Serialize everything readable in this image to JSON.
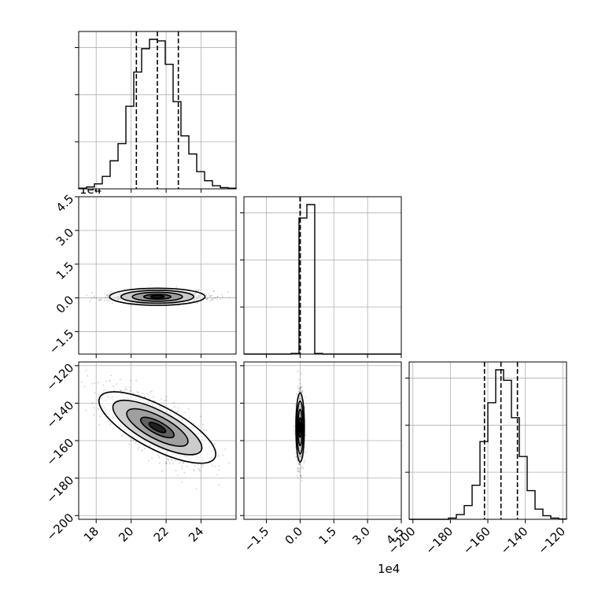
{
  "chart_data": {
    "type": "corner",
    "title": "",
    "grid": true,
    "colors": {
      "line": "#000000",
      "grid": "#b0b0b0",
      "points": "#000000",
      "fill": "#000000"
    },
    "params": [
      {
        "index": 0,
        "range": [
          17,
          26
        ],
        "ticks": [
          18,
          20,
          22,
          24
        ],
        "tick_labels": [
          "18",
          "20",
          "22",
          "24"
        ],
        "quantiles": [
          20.3,
          21.5,
          22.7
        ]
      },
      {
        "index": 1,
        "range": [
          -25000,
          45000
        ],
        "ticks": [
          -15000,
          0,
          15000,
          30000,
          45000
        ],
        "tick_labels": [
          "−1.5",
          "0.0",
          "1.5",
          "3.0",
          "4.5"
        ],
        "offset_text": "1e4",
        "quantiles": [
          0,
          0,
          0
        ]
      },
      {
        "index": 2,
        "range": [
          -202,
          -118
        ],
        "ticks": [
          -200,
          -180,
          -160,
          -140,
          -120
        ],
        "tick_labels": [
          "−200",
          "−180",
          "−160",
          "−140",
          "−120"
        ],
        "quantiles": [
          -161.8,
          -153.0,
          -144.2
        ]
      }
    ],
    "hist": [
      {
        "param": 0,
        "bin_edges": [
          17,
          17.45,
          17.9,
          18.35,
          18.8,
          19.25,
          19.7,
          20.15,
          20.6,
          21.05,
          21.5,
          21.95,
          22.4,
          22.85,
          23.3,
          23.75,
          24.2,
          24.65,
          25.1,
          25.55,
          26
        ],
        "counts": [
          2,
          6,
          16,
          40,
          90,
          145,
          265,
          375,
          450,
          480,
          475,
          400,
          280,
          170,
          112,
          55,
          26,
          10,
          4,
          2
        ]
      },
      {
        "param": 1,
        "bin_edges": [
          -25000,
          -21500,
          -18000,
          -14500,
          -11000,
          -7500,
          -4000,
          -500,
          3000,
          6500,
          10000,
          13500,
          17000,
          20500,
          24000,
          27500,
          31000,
          34500,
          38000,
          41500,
          45000
        ],
        "counts": [
          0,
          0,
          0,
          0,
          0,
          0,
          2,
          455,
          500,
          2,
          0,
          0,
          0,
          0,
          0,
          0,
          0,
          0,
          0,
          0
        ]
      },
      {
        "param": 2,
        "bin_edges": [
          -202,
          -197.8,
          -193.6,
          -189.4,
          -185.2,
          -181,
          -176.8,
          -172.6,
          -168.4,
          -164.2,
          -160,
          -155.8,
          -151.6,
          -147.4,
          -143.2,
          -139,
          -134.8,
          -130.6,
          -126.4,
          -122.2,
          -118
        ],
        "counts": [
          0,
          0,
          0,
          0,
          0,
          4,
          16,
          46,
          114,
          260,
          390,
          500,
          465,
          340,
          210,
          96,
          34,
          12,
          4,
          1
        ]
      }
    ],
    "pairs": [
      {
        "x_param": 0,
        "y_param": 1,
        "mean": [
          21.5,
          500
        ],
        "sd": [
          1.3,
          1800
        ],
        "corr": 0.0
      },
      {
        "x_param": 0,
        "y_param": 2,
        "mean": [
          21.5,
          -153
        ],
        "sd": [
          1.35,
          9.2
        ],
        "corr": -0.72
      },
      {
        "x_param": 1,
        "y_param": 2,
        "mean": [
          0,
          -153
        ],
        "sd": [
          900,
          8.8
        ],
        "corr": 0.0
      }
    ]
  }
}
